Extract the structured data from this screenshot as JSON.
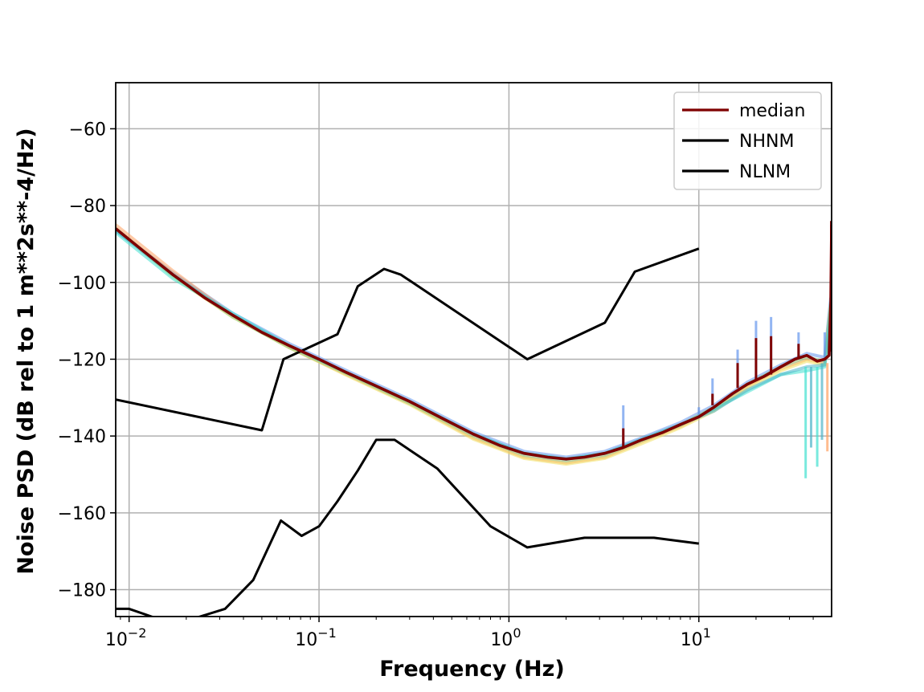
{
  "chart_data": {
    "type": "line",
    "title": "",
    "xlabel": "Frequency (Hz)",
    "ylabel": "Noise PSD (dB rel to 1 m**2s**-4/Hz)",
    "xscale": "log",
    "xlim": [
      0.0085,
      50
    ],
    "ylim": [
      -187,
      -48
    ],
    "grid": true,
    "legend_location": "top-right",
    "x_ticks": [
      {
        "value": 0.01,
        "base": "10",
        "exp": "−2"
      },
      {
        "value": 0.1,
        "base": "10",
        "exp": "−1"
      },
      {
        "value": 1,
        "base": "10",
        "exp": "0"
      },
      {
        "value": 10,
        "base": "10",
        "exp": "1"
      }
    ],
    "y_ticks": [
      {
        "value": -60,
        "label": "−60"
      },
      {
        "value": -80,
        "label": "−80"
      },
      {
        "value": -100,
        "label": "−100"
      },
      {
        "value": -120,
        "label": "−120"
      },
      {
        "value": -140,
        "label": "−140"
      },
      {
        "value": -160,
        "label": "−160"
      },
      {
        "value": -180,
        "label": "−180"
      }
    ],
    "series": [
      {
        "name": "median",
        "color": "#7f0000",
        "in_legend": true,
        "x": [
          0.0085,
          0.012,
          0.017,
          0.025,
          0.035,
          0.05,
          0.07,
          0.1,
          0.14,
          0.2,
          0.3,
          0.45,
          0.65,
          0.9,
          1.2,
          1.6,
          2.0,
          2.5,
          3.2,
          4.0,
          5.0,
          6.5,
          8.0,
          10.0,
          12.0,
          15.0,
          18.0,
          22.0,
          27.0,
          32.0,
          37.0,
          42.0,
          46.0,
          48.5,
          49.5,
          50.0
        ],
        "y": [
          -86,
          -92,
          -98,
          -104,
          -108.5,
          -113,
          -116.5,
          -120,
          -123.5,
          -127,
          -131,
          -135.5,
          -139.5,
          -142.5,
          -144.5,
          -145.5,
          -146,
          -145.5,
          -144.5,
          -143,
          -141,
          -139,
          -137,
          -135,
          -132.5,
          -129,
          -126.5,
          -124.5,
          -122,
          -120,
          -119,
          -120.5,
          -120,
          -119,
          -105,
          -85
        ]
      },
      {
        "name": "NHNM",
        "color": "#000000",
        "in_legend": true,
        "x": [
          0.0085,
          0.05,
          0.065,
          0.125,
          0.16,
          0.22,
          0.27,
          1.25,
          3.2,
          4.6,
          10.0
        ],
        "y": [
          -130.5,
          -138.5,
          -120,
          -113.5,
          -101,
          -96.5,
          -98,
          -120,
          -110.5,
          -97.2,
          -91.2
        ]
      },
      {
        "name": "NLNM",
        "color": "#000000",
        "in_legend": true,
        "x": [
          0.0085,
          0.01,
          0.014,
          0.022,
          0.032,
          0.045,
          0.063,
          0.081,
          0.1,
          0.125,
          0.16,
          0.2,
          0.25,
          0.42,
          0.8,
          1.25,
          2.5,
          5.8,
          10.0
        ],
        "y": [
          -185,
          -185,
          -187.5,
          -187.5,
          -185,
          -177.5,
          -162,
          -166,
          -163.5,
          -157,
          -149,
          -141,
          -141,
          -148.5,
          -163.5,
          -169,
          -166.5,
          -166.5,
          -168
        ]
      }
    ],
    "spectra": [
      {
        "name": "spectrum-blue",
        "color": "#6495ed",
        "in_legend": false,
        "x": [
          0.0085,
          0.017,
          0.035,
          0.07,
          0.14,
          0.3,
          0.65,
          1.2,
          2.0,
          3.2,
          5.0,
          8.0,
          12.0,
          18.0,
          27.0,
          37.0,
          46.0,
          49.5
        ],
        "y": [
          -86.5,
          -97.5,
          -108,
          -116,
          -123,
          -130.5,
          -139,
          -144,
          -145.5,
          -144,
          -140.5,
          -136.5,
          -132,
          -126,
          -121.5,
          -118.5,
          -119.5,
          -104
        ]
      },
      {
        "name": "spectrum-orange",
        "color": "#ffa060",
        "in_legend": false,
        "x": [
          0.0085,
          0.017,
          0.035,
          0.07,
          0.14,
          0.3,
          0.65,
          1.2,
          2.0,
          3.2,
          5.0,
          8.0,
          12.0,
          18.0,
          27.0,
          37.0,
          46.0,
          49.5
        ],
        "y": [
          -85,
          -97,
          -108.5,
          -117,
          -124,
          -131.5,
          -140.5,
          -145.5,
          -147,
          -145.5,
          -141.5,
          -137.5,
          -133,
          -127,
          -122.5,
          -120,
          -121,
          -106
        ]
      },
      {
        "name": "spectrum-yellow",
        "color": "#f0e060",
        "in_legend": false,
        "x": [
          0.0085,
          0.017,
          0.035,
          0.07,
          0.14,
          0.3,
          0.65,
          1.2,
          2.0,
          3.2,
          5.0,
          8.0,
          12.0,
          18.0,
          27.0,
          37.0,
          46.0,
          49.5
        ],
        "y": [
          -86,
          -98.5,
          -109,
          -117,
          -124.2,
          -131.8,
          -140.8,
          -145.8,
          -147.3,
          -145.8,
          -142,
          -137.8,
          -133.5,
          -127.5,
          -123,
          -120.5,
          -121.5,
          -106.5
        ]
      },
      {
        "name": "spectrum-cyan",
        "color": "#40e0d0",
        "in_legend": false,
        "x": [
          0.0085,
          0.017,
          0.035,
          0.07,
          0.14,
          0.3,
          0.65,
          1.2,
          2.0,
          3.2,
          5.0,
          8.0,
          12.0,
          18.0,
          27.0,
          37.0,
          46.0,
          49.5
        ],
        "y": [
          -87,
          -99,
          -108,
          -116.5,
          -123.5,
          -131,
          -139.5,
          -144.5,
          -146,
          -144.5,
          -141,
          -137,
          -133,
          -128.5,
          -124,
          -123,
          -122,
          -108
        ]
      },
      {
        "name": "spectrum-green",
        "color": "#8fd28f",
        "in_legend": false,
        "x": [
          0.0085,
          0.017,
          0.035,
          0.07,
          0.14,
          0.3,
          0.65,
          1.2,
          2.0,
          3.2,
          5.0,
          8.0,
          12.0,
          18.0,
          27.0,
          37.0,
          46.0,
          49.5
        ],
        "y": [
          -86,
          -98,
          -109,
          -117,
          -123.8,
          -131.5,
          -140,
          -145,
          -146.5,
          -145,
          -141.2,
          -137.2,
          -132.5,
          -126.5,
          -122,
          -119.5,
          -120.5,
          -105
        ]
      },
      {
        "name": "spectrum-teal",
        "color": "#4bb4c8",
        "in_legend": false,
        "x": [
          0.0085,
          0.017,
          0.035,
          0.07,
          0.14,
          0.3,
          0.65,
          1.2,
          2.0,
          3.2,
          5.0,
          8.0,
          12.0,
          18.0,
          27.0,
          37.0,
          46.0,
          49.5
        ],
        "y": [
          -86.5,
          -98,
          -108.5,
          -116.5,
          -123.5,
          -131,
          -139.5,
          -144.5,
          -146,
          -144.5,
          -140.8,
          -137,
          -133.5,
          -128,
          -124,
          -122,
          -121.5,
          -107
        ]
      }
    ],
    "spikes": [
      {
        "x": 4.0,
        "top": -132,
        "base": -143,
        "color": "#6495ed"
      },
      {
        "x": 4.0,
        "top": -138,
        "base": -143,
        "color": "#7f0000"
      },
      {
        "x": 10.0,
        "top": -132.5,
        "base": -135,
        "color": "#6495ed"
      },
      {
        "x": 11.8,
        "top": -125,
        "base": -132,
        "color": "#6495ed"
      },
      {
        "x": 11.8,
        "top": -129,
        "base": -132,
        "color": "#7f0000"
      },
      {
        "x": 16.0,
        "top": -117.5,
        "base": -127.5,
        "color": "#6495ed"
      },
      {
        "x": 16.0,
        "top": -121,
        "base": -127.5,
        "color": "#7f0000"
      },
      {
        "x": 20.0,
        "top": -110,
        "base": -125.5,
        "color": "#6495ed"
      },
      {
        "x": 20.0,
        "top": -114.5,
        "base": -125.5,
        "color": "#7f0000"
      },
      {
        "x": 24.0,
        "top": -109,
        "base": -124,
        "color": "#6495ed"
      },
      {
        "x": 24.0,
        "top": -114,
        "base": -124,
        "color": "#7f0000"
      },
      {
        "x": 33.5,
        "top": -113,
        "base": -120,
        "color": "#6495ed"
      },
      {
        "x": 33.5,
        "top": -116,
        "base": -120,
        "color": "#7f0000"
      },
      {
        "x": 46.0,
        "top": -113,
        "base": -120,
        "color": "#6495ed"
      },
      {
        "x": 36.5,
        "top": -151,
        "base": -122,
        "color": "#40e0d0"
      },
      {
        "x": 39.0,
        "top": -143,
        "base": -122,
        "color": "#4bb4c8"
      },
      {
        "x": 42.0,
        "top": -148,
        "base": -122,
        "color": "#40e0d0"
      },
      {
        "x": 44.5,
        "top": -141,
        "base": -121,
        "color": "#4bb4c8"
      },
      {
        "x": 47.5,
        "top": -144,
        "base": -121,
        "color": "#ffa060"
      },
      {
        "x": 49.8,
        "top": -84,
        "base": -118,
        "color": "#7f0000"
      }
    ]
  }
}
